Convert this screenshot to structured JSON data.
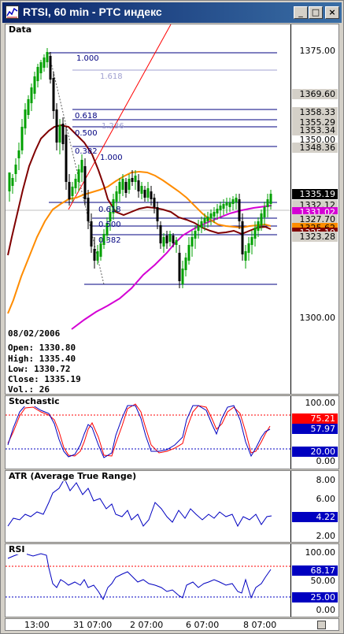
{
  "window": {
    "title": "RTSI, 60 min - PTC индекс",
    "minimize_glyph": "_",
    "maximize_glyph": "□",
    "close_glyph": "×"
  },
  "price_pane": {
    "label": "Data",
    "scale_ticks": [
      "1375.00",
      "1350.00",
      "1300.00"
    ],
    "price_tags": [
      {
        "text": "1369.60",
        "bg": "#d4d0c8",
        "fg": "#000000"
      },
      {
        "text": "1358.33",
        "bg": "#d4d0c8",
        "fg": "#000000"
      },
      {
        "text": "1355.29",
        "bg": "#d4d0c8",
        "fg": "#000000"
      },
      {
        "text": "1353.34",
        "bg": "#d4d0c8",
        "fg": "#000000"
      },
      {
        "text": "1348.36",
        "bg": "#d4d0c8",
        "fg": "#000000"
      },
      {
        "text": "1335.19",
        "bg": "#000000",
        "fg": "#ffffff"
      },
      {
        "text": "1332.12",
        "bg": "#d4d0c8",
        "fg": "#000000"
      },
      {
        "text": "1331.02",
        "bg": "#d400d4",
        "fg": "#ffffff"
      },
      {
        "text": "1327.70",
        "bg": "#d4d0c8",
        "fg": "#000000"
      },
      {
        "text": "1325.62",
        "bg": "#ff8c00",
        "fg": "#000000"
      },
      {
        "text": "1325.19",
        "bg": "#800000",
        "fg": "#ffffff"
      },
      {
        "text": "1323.28",
        "bg": "#d4d0c8",
        "fg": "#000000"
      }
    ],
    "fib_labels": {
      "upper_100": "1.000",
      "upper_1618": "1.618",
      "upper_618": "0.618",
      "upper_500": "0.500",
      "upper_382": "0.382",
      "upper_1236": "1.236",
      "lower_100": "1.000",
      "lower_618": "0.618",
      "lower_500": "0.500",
      "lower_382": "0.382"
    },
    "info": {
      "date": "08/02/2006",
      "open": "Open: 1330.80",
      "high": "High: 1335.40",
      "low": "Low: 1330.72",
      "close": "Close: 1335.19",
      "vol": "Vol.: 26"
    }
  },
  "stoch_pane": {
    "label": "Stochastic",
    "scale_ticks": [
      "100.00",
      "0.00"
    ],
    "tags": [
      {
        "text": "75.21",
        "bg": "#ff0000",
        "fg": "#ffffff"
      },
      {
        "text": "57.97",
        "bg": "#0000c0",
        "fg": "#ffffff"
      },
      {
        "text": "20.00",
        "bg": "#0000c0",
        "fg": "#ffffff"
      }
    ]
  },
  "atr_pane": {
    "label": "ATR (Average True Range)",
    "scale_ticks": [
      "8.00",
      "6.00",
      "2.00"
    ],
    "tags": [
      {
        "text": "4.22",
        "bg": "#0000c0",
        "fg": "#ffffff"
      }
    ]
  },
  "rsi_pane": {
    "label": "RSI",
    "scale_ticks": [
      "100.00",
      "50.00",
      "0.00"
    ],
    "tags": [
      {
        "text": "68.17",
        "bg": "#0000c0",
        "fg": "#ffffff"
      },
      {
        "text": "25.00",
        "bg": "#0000c0",
        "fg": "#ffffff"
      }
    ]
  },
  "x_axis": {
    "labels": [
      "13:00",
      "31 07:00",
      "2 07:00",
      "6 07:00",
      "8 07:00"
    ]
  },
  "colors": {
    "up_candle": "#00a000",
    "down_candle": "#000000",
    "ma_short": "#800000",
    "ma_mid": "#ff8c00",
    "ma_long": "#d400d4",
    "indicator": "#0000c0",
    "signal": "#ff0000"
  }
}
